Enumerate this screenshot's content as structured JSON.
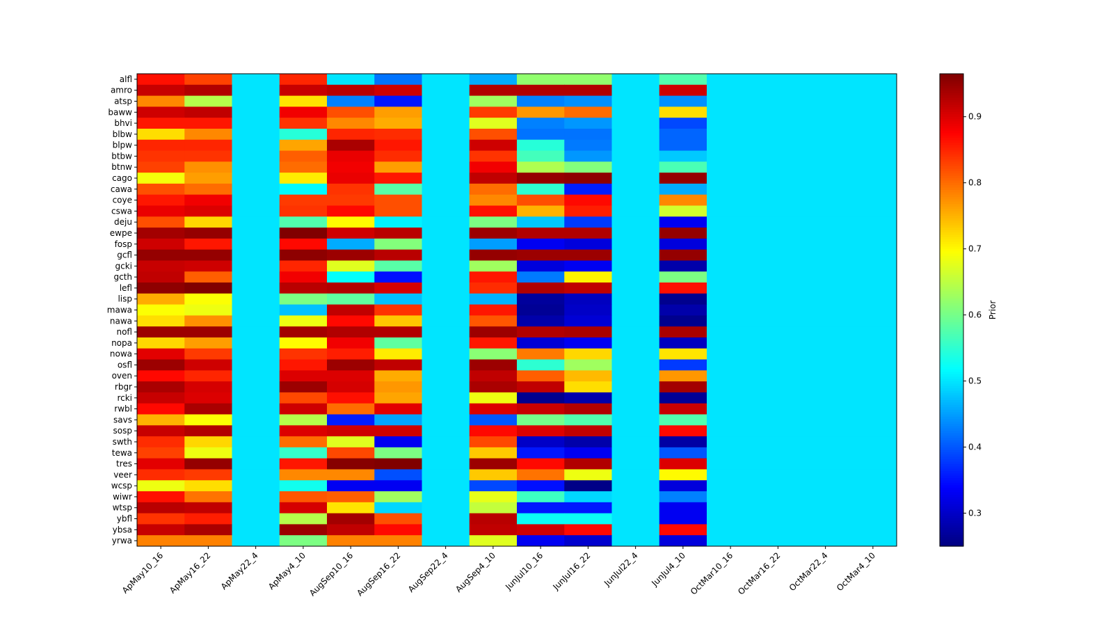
{
  "chart_data": {
    "type": "heatmap",
    "title": "",
    "xlabel": "",
    "ylabel": "",
    "colormap": "jet",
    "colorbar": {
      "label": "Prior",
      "vmin": 0.25,
      "vmax": 0.965,
      "ticks": [
        "0.3",
        "0.4",
        "0.5",
        "0.6",
        "0.7",
        "0.8",
        "0.9"
      ]
    },
    "x_categories": [
      "ApMay10_16",
      "ApMay16_22",
      "ApMay22_4",
      "ApMay4_10",
      "AugSep10_16",
      "AugSep16_22",
      "AugSep22_4",
      "AugSep4_10",
      "JunJul10_16",
      "JunJul16_22",
      "JunJul22_4",
      "JunJul4_10",
      "OctMar10_16",
      "OctMar16_22",
      "OctMar22_4",
      "OctMar4_10"
    ],
    "y_categories": [
      "alfl",
      "amro",
      "atsp",
      "baww",
      "bhvi",
      "blbw",
      "blpw",
      "btbw",
      "btnw",
      "cago",
      "cawa",
      "coye",
      "cswa",
      "deju",
      "ewpe",
      "fosp",
      "gcfl",
      "gcki",
      "gcth",
      "lefl",
      "lisp",
      "mawa",
      "nawa",
      "nofl",
      "nopa",
      "nowa",
      "osfl",
      "oven",
      "rbgr",
      "rcki",
      "rwbl",
      "savs",
      "sosp",
      "swth",
      "tewa",
      "tres",
      "veer",
      "wcsp",
      "wiwr",
      "wtsp",
      "ybfl",
      "ybsa",
      "yrwa"
    ],
    "values": [
      [
        0.865,
        0.83,
        0.5,
        0.85,
        0.5,
        0.42,
        0.5,
        0.46,
        0.62,
        0.62,
        0.5,
        0.575,
        0.5,
        0.5,
        0.5,
        0.5
      ],
      [
        0.915,
        0.93,
        0.5,
        0.915,
        0.925,
        0.91,
        0.5,
        0.93,
        0.93,
        0.93,
        0.5,
        0.91,
        0.5,
        0.5,
        0.5,
        0.5
      ],
      [
        0.78,
        0.645,
        0.5,
        0.715,
        0.43,
        0.355,
        0.5,
        0.63,
        0.43,
        0.44,
        0.5,
        0.44,
        0.5,
        0.5,
        0.5,
        0.5
      ],
      [
        0.91,
        0.92,
        0.5,
        0.885,
        0.82,
        0.765,
        0.5,
        0.835,
        0.77,
        0.8,
        0.5,
        0.72,
        0.5,
        0.5,
        0.5,
        0.5
      ],
      [
        0.86,
        0.86,
        0.5,
        0.84,
        0.78,
        0.755,
        0.5,
        0.675,
        0.43,
        0.445,
        0.5,
        0.39,
        0.5,
        0.5,
        0.5,
        0.5
      ],
      [
        0.72,
        0.78,
        0.5,
        0.545,
        0.85,
        0.845,
        0.5,
        0.82,
        0.42,
        0.42,
        0.5,
        0.41,
        0.5,
        0.5,
        0.5,
        0.5
      ],
      [
        0.85,
        0.85,
        0.5,
        0.76,
        0.935,
        0.86,
        0.5,
        0.91,
        0.545,
        0.425,
        0.5,
        0.41,
        0.5,
        0.5,
        0.5,
        0.5
      ],
      [
        0.84,
        0.84,
        0.5,
        0.81,
        0.89,
        0.845,
        0.5,
        0.84,
        0.565,
        0.445,
        0.5,
        0.48,
        0.5,
        0.5,
        0.5,
        0.5
      ],
      [
        0.83,
        0.775,
        0.5,
        0.8,
        0.885,
        0.765,
        0.5,
        0.885,
        0.64,
        0.61,
        0.5,
        0.57,
        0.5,
        0.5,
        0.5,
        0.5
      ],
      [
        0.69,
        0.765,
        0.5,
        0.71,
        0.89,
        0.86,
        0.5,
        0.92,
        0.95,
        0.955,
        0.5,
        0.95,
        0.5,
        0.5,
        0.5,
        0.5
      ],
      [
        0.82,
        0.8,
        0.5,
        0.515,
        0.84,
        0.58,
        0.5,
        0.8,
        0.55,
        0.36,
        0.5,
        0.46,
        0.5,
        0.5,
        0.5,
        0.5
      ],
      [
        0.86,
        0.885,
        0.5,
        0.835,
        0.835,
        0.82,
        0.5,
        0.78,
        0.82,
        0.87,
        0.5,
        0.78,
        0.5,
        0.5,
        0.5,
        0.5
      ],
      [
        0.89,
        0.9,
        0.5,
        0.84,
        0.87,
        0.82,
        0.5,
        0.865,
        0.75,
        0.855,
        0.5,
        0.665,
        0.5,
        0.5,
        0.5,
        0.5
      ],
      [
        0.82,
        0.725,
        0.5,
        0.575,
        0.7,
        0.51,
        0.5,
        0.605,
        0.48,
        0.38,
        0.5,
        0.33,
        0.5,
        0.5,
        0.5,
        0.5
      ],
      [
        0.94,
        0.95,
        0.5,
        0.965,
        0.91,
        0.925,
        0.5,
        0.945,
        0.93,
        0.93,
        0.5,
        0.95,
        0.5,
        0.5,
        0.5,
        0.5
      ],
      [
        0.91,
        0.86,
        0.5,
        0.87,
        0.46,
        0.61,
        0.5,
        0.45,
        0.33,
        0.315,
        0.5,
        0.315,
        0.5,
        0.5,
        0.5,
        0.5
      ],
      [
        0.95,
        0.95,
        0.5,
        0.955,
        0.945,
        0.925,
        0.5,
        0.95,
        0.945,
        0.945,
        0.5,
        0.95,
        0.5,
        0.5,
        0.5,
        0.5
      ],
      [
        0.915,
        0.91,
        0.5,
        0.85,
        0.675,
        0.58,
        0.5,
        0.63,
        0.315,
        0.33,
        0.5,
        0.28,
        0.5,
        0.5,
        0.5,
        0.5
      ],
      [
        0.92,
        0.81,
        0.5,
        0.885,
        0.52,
        0.35,
        0.5,
        0.86,
        0.425,
        0.705,
        0.5,
        0.605,
        0.5,
        0.5,
        0.5,
        0.5
      ],
      [
        0.955,
        0.965,
        0.5,
        0.925,
        0.93,
        0.905,
        0.5,
        0.845,
        0.93,
        0.92,
        0.5,
        0.865,
        0.5,
        0.5,
        0.5,
        0.5
      ],
      [
        0.755,
        0.695,
        0.5,
        0.605,
        0.585,
        0.475,
        0.5,
        0.465,
        0.27,
        0.295,
        0.5,
        0.26,
        0.5,
        0.5,
        0.5,
        0.5
      ],
      [
        0.695,
        0.685,
        0.5,
        0.475,
        0.92,
        0.84,
        0.5,
        0.86,
        0.265,
        0.3,
        0.5,
        0.28,
        0.5,
        0.5,
        0.5,
        0.5
      ],
      [
        0.72,
        0.775,
        0.5,
        0.685,
        0.87,
        0.735,
        0.5,
        0.815,
        0.28,
        0.31,
        0.5,
        0.26,
        0.5,
        0.5,
        0.5,
        0.5
      ],
      [
        0.945,
        0.945,
        0.5,
        0.94,
        0.93,
        0.93,
        0.5,
        0.945,
        0.93,
        0.935,
        0.5,
        0.935,
        0.5,
        0.5,
        0.5,
        0.5
      ],
      [
        0.725,
        0.765,
        0.5,
        0.7,
        0.885,
        0.585,
        0.5,
        0.86,
        0.31,
        0.33,
        0.5,
        0.295,
        0.5,
        0.5,
        0.5,
        0.5
      ],
      [
        0.895,
        0.835,
        0.5,
        0.84,
        0.855,
        0.71,
        0.5,
        0.615,
        0.79,
        0.725,
        0.5,
        0.715,
        0.5,
        0.5,
        0.5,
        0.5
      ],
      [
        0.945,
        0.91,
        0.5,
        0.86,
        0.945,
        0.92,
        0.5,
        0.945,
        0.55,
        0.63,
        0.5,
        0.38,
        0.5,
        0.5,
        0.5,
        0.5
      ],
      [
        0.87,
        0.85,
        0.5,
        0.9,
        0.9,
        0.755,
        0.5,
        0.92,
        0.81,
        0.745,
        0.5,
        0.77,
        0.5,
        0.5,
        0.5,
        0.5
      ],
      [
        0.935,
        0.905,
        0.5,
        0.945,
        0.905,
        0.77,
        0.5,
        0.935,
        0.92,
        0.72,
        0.5,
        0.94,
        0.5,
        0.5,
        0.5,
        0.5
      ],
      [
        0.915,
        0.9,
        0.5,
        0.825,
        0.865,
        0.76,
        0.5,
        0.685,
        0.26,
        0.28,
        0.5,
        0.265,
        0.5,
        0.5,
        0.5,
        0.5
      ],
      [
        0.87,
        0.935,
        0.5,
        0.91,
        0.8,
        0.895,
        0.5,
        0.9,
        0.915,
        0.93,
        0.5,
        0.915,
        0.5,
        0.5,
        0.5,
        0.5
      ],
      [
        0.75,
        0.695,
        0.5,
        0.645,
        0.36,
        0.455,
        0.5,
        0.4,
        0.6,
        0.575,
        0.5,
        0.575,
        0.5,
        0.5,
        0.5,
        0.5
      ],
      [
        0.915,
        0.93,
        0.5,
        0.9,
        0.91,
        0.91,
        0.5,
        0.87,
        0.9,
        0.92,
        0.5,
        0.87,
        0.5,
        0.5,
        0.5,
        0.5
      ],
      [
        0.845,
        0.725,
        0.5,
        0.8,
        0.675,
        0.33,
        0.5,
        0.825,
        0.3,
        0.28,
        0.5,
        0.275,
        0.5,
        0.5,
        0.5,
        0.5
      ],
      [
        0.83,
        0.685,
        0.5,
        0.555,
        0.825,
        0.605,
        0.5,
        0.735,
        0.355,
        0.33,
        0.5,
        0.4,
        0.5,
        0.5,
        0.5,
        0.5
      ],
      [
        0.895,
        0.95,
        0.5,
        0.86,
        0.96,
        0.965,
        0.5,
        0.945,
        0.87,
        0.93,
        0.5,
        0.9,
        0.5,
        0.5,
        0.5,
        0.5
      ],
      [
        0.845,
        0.835,
        0.5,
        0.78,
        0.78,
        0.395,
        0.5,
        0.735,
        0.795,
        0.685,
        0.5,
        0.7,
        0.5,
        0.5,
        0.5,
        0.5
      ],
      [
        0.685,
        0.72,
        0.5,
        0.53,
        0.33,
        0.33,
        0.5,
        0.39,
        0.35,
        0.255,
        0.5,
        0.315,
        0.5,
        0.5,
        0.5,
        0.5
      ],
      [
        0.865,
        0.795,
        0.5,
        0.815,
        0.81,
        0.63,
        0.5,
        0.68,
        0.56,
        0.49,
        0.5,
        0.43,
        0.5,
        0.5,
        0.5,
        0.5
      ],
      [
        0.925,
        0.92,
        0.5,
        0.905,
        0.715,
        0.49,
        0.5,
        0.655,
        0.355,
        0.355,
        0.5,
        0.33,
        0.5,
        0.5,
        0.5,
        0.5
      ],
      [
        0.84,
        0.855,
        0.5,
        0.645,
        0.94,
        0.82,
        0.5,
        0.925,
        0.525,
        0.525,
        0.5,
        0.33,
        0.5,
        0.5,
        0.5,
        0.5
      ],
      [
        0.915,
        0.935,
        0.5,
        0.945,
        0.92,
        0.87,
        0.5,
        0.92,
        0.91,
        0.87,
        0.5,
        0.87,
        0.5,
        0.5,
        0.5,
        0.5
      ],
      [
        0.785,
        0.785,
        0.5,
        0.605,
        0.785,
        0.785,
        0.5,
        0.675,
        0.33,
        0.305,
        0.5,
        0.315,
        0.5,
        0.5,
        0.5,
        0.5
      ]
    ]
  }
}
